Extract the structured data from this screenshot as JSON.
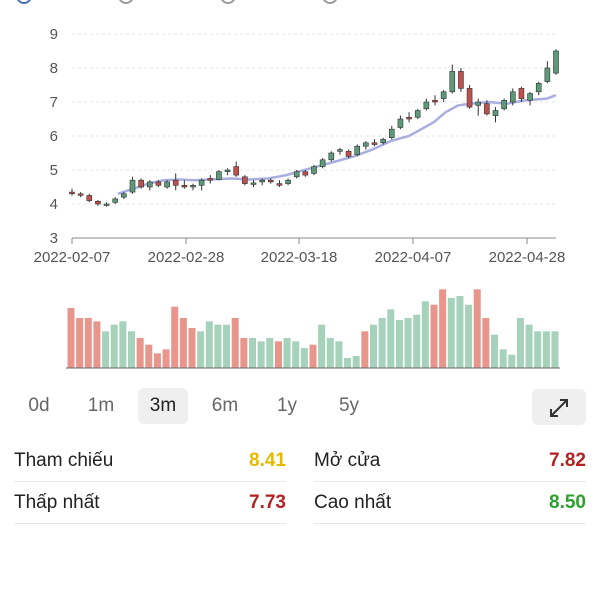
{
  "chart_data": {
    "type": "candlestick",
    "xlabels": [
      "2022-02-07",
      "2022-02-28",
      "2022-03-18",
      "2022-04-07",
      "2022-04-28"
    ],
    "ylim": [
      3,
      9
    ],
    "yticks": [
      "3",
      "4",
      "5",
      "6",
      "7",
      "8",
      "9"
    ],
    "grid": true,
    "colors": {
      "up": "#5d9a7a",
      "down": "#c0504d",
      "ma": "#a9aee0",
      "vol_up": "#a6d1bb",
      "vol_down": "#e8958c"
    },
    "candles": [
      [
        4.35,
        4.45,
        4.25,
        4.3,
        "d"
      ],
      [
        4.3,
        4.35,
        4.2,
        4.28,
        "d"
      ],
      [
        4.25,
        4.3,
        4.05,
        4.1,
        "d"
      ],
      [
        4.08,
        4.12,
        3.95,
        4.0,
        "d"
      ],
      [
        3.98,
        4.05,
        3.92,
        4.0,
        "u"
      ],
      [
        4.05,
        4.2,
        4.0,
        4.15,
        "u"
      ],
      [
        4.2,
        4.35,
        4.15,
        4.3,
        "u"
      ],
      [
        4.35,
        4.8,
        4.3,
        4.7,
        "u"
      ],
      [
        4.7,
        4.75,
        4.45,
        4.5,
        "d"
      ],
      [
        4.5,
        4.7,
        4.4,
        4.65,
        "u"
      ],
      [
        4.65,
        4.7,
        4.5,
        4.55,
        "d"
      ],
      [
        4.5,
        4.7,
        4.45,
        4.65,
        "u"
      ],
      [
        4.7,
        4.9,
        4.4,
        4.55,
        "d"
      ],
      [
        4.55,
        4.7,
        4.45,
        4.5,
        "d"
      ],
      [
        4.5,
        4.6,
        4.4,
        4.55,
        "u"
      ],
      [
        4.55,
        4.75,
        4.4,
        4.7,
        "u"
      ],
      [
        4.75,
        4.85,
        4.6,
        4.7,
        "d"
      ],
      [
        4.72,
        5.0,
        4.7,
        4.95,
        "u"
      ],
      [
        4.95,
        5.05,
        4.85,
        5.0,
        "u"
      ],
      [
        5.1,
        5.25,
        4.8,
        4.85,
        "d"
      ],
      [
        4.8,
        4.85,
        4.55,
        4.6,
        "d"
      ],
      [
        4.6,
        4.7,
        4.5,
        4.62,
        "u"
      ],
      [
        4.65,
        4.75,
        4.55,
        4.7,
        "u"
      ],
      [
        4.7,
        4.75,
        4.6,
        4.65,
        "d"
      ],
      [
        4.6,
        4.7,
        4.5,
        4.55,
        "d"
      ],
      [
        4.6,
        4.75,
        4.55,
        4.7,
        "u"
      ],
      [
        4.8,
        5.0,
        4.75,
        4.95,
        "u"
      ],
      [
        4.95,
        5.0,
        4.8,
        4.85,
        "d"
      ],
      [
        4.9,
        5.15,
        4.85,
        5.1,
        "u"
      ],
      [
        5.1,
        5.35,
        5.05,
        5.3,
        "u"
      ],
      [
        5.3,
        5.55,
        5.25,
        5.5,
        "u"
      ],
      [
        5.55,
        5.65,
        5.45,
        5.6,
        "u"
      ],
      [
        5.55,
        5.6,
        5.35,
        5.4,
        "d"
      ],
      [
        5.45,
        5.75,
        5.4,
        5.7,
        "u"
      ],
      [
        5.7,
        5.85,
        5.6,
        5.8,
        "u"
      ],
      [
        5.8,
        5.9,
        5.7,
        5.75,
        "d"
      ],
      [
        5.8,
        5.95,
        5.75,
        5.9,
        "u"
      ],
      [
        5.95,
        6.3,
        5.9,
        6.2,
        "u"
      ],
      [
        6.25,
        6.6,
        6.2,
        6.5,
        "u"
      ],
      [
        6.5,
        6.7,
        6.4,
        6.55,
        "d"
      ],
      [
        6.55,
        6.8,
        6.5,
        6.75,
        "u"
      ],
      [
        6.8,
        7.1,
        6.75,
        7.0,
        "u"
      ],
      [
        7.0,
        7.2,
        6.9,
        7.05,
        "d"
      ],
      [
        7.1,
        7.35,
        7.0,
        7.3,
        "u"
      ],
      [
        7.3,
        8.1,
        7.25,
        7.9,
        "u"
      ],
      [
        7.9,
        8.0,
        7.3,
        7.4,
        "d"
      ],
      [
        7.4,
        7.5,
        6.8,
        6.85,
        "d"
      ],
      [
        6.9,
        7.1,
        6.6,
        7.0,
        "u"
      ],
      [
        6.95,
        7.05,
        6.6,
        6.65,
        "d"
      ],
      [
        6.6,
        6.85,
        6.4,
        6.75,
        "u"
      ],
      [
        6.8,
        7.1,
        6.75,
        7.05,
        "u"
      ],
      [
        7.0,
        7.4,
        6.9,
        7.3,
        "u"
      ],
      [
        7.4,
        7.45,
        7.0,
        7.1,
        "d"
      ],
      [
        7.05,
        7.3,
        6.9,
        7.25,
        "u"
      ],
      [
        7.3,
        7.6,
        7.2,
        7.55,
        "u"
      ],
      [
        7.6,
        8.2,
        7.55,
        8.0,
        "u"
      ],
      [
        7.85,
        8.55,
        7.8,
        8.5,
        "u"
      ]
    ],
    "ma": [
      [
        15,
        4.3
      ],
      [
        20,
        4.45
      ],
      [
        25,
        4.6
      ],
      [
        30,
        4.7
      ],
      [
        35,
        4.72
      ],
      [
        40,
        4.7
      ],
      [
        45,
        4.72
      ],
      [
        52,
        4.75
      ],
      [
        58,
        4.72
      ],
      [
        64,
        4.75
      ],
      [
        70,
        4.85
      ],
      [
        75,
        4.98
      ],
      [
        80,
        5.1
      ],
      [
        86,
        5.25
      ],
      [
        92,
        5.4
      ],
      [
        98,
        5.6
      ],
      [
        104,
        5.85
      ],
      [
        110,
        6.0
      ],
      [
        114,
        6.2
      ],
      [
        118,
        6.4
      ],
      [
        122,
        6.7
      ],
      [
        126,
        6.9
      ],
      [
        130,
        6.95
      ],
      [
        136,
        7.0
      ],
      [
        142,
        6.95
      ],
      [
        148,
        7.05
      ],
      [
        155,
        7.1
      ],
      [
        158,
        7.2
      ]
    ],
    "volume": [
      [
        90,
        "d"
      ],
      [
        75,
        "d"
      ],
      [
        75,
        "d"
      ],
      [
        70,
        "d"
      ],
      [
        55,
        "u"
      ],
      [
        65,
        "u"
      ],
      [
        70,
        "u"
      ],
      [
        55,
        "u"
      ],
      [
        45,
        "d"
      ],
      [
        35,
        "d"
      ],
      [
        22,
        "d"
      ],
      [
        28,
        "d"
      ],
      [
        92,
        "d"
      ],
      [
        75,
        "d"
      ],
      [
        60,
        "d"
      ],
      [
        55,
        "u"
      ],
      [
        70,
        "u"
      ],
      [
        65,
        "u"
      ],
      [
        65,
        "u"
      ],
      [
        75,
        "d"
      ],
      [
        45,
        "d"
      ],
      [
        45,
        "u"
      ],
      [
        40,
        "u"
      ],
      [
        45,
        "u"
      ],
      [
        40,
        "d"
      ],
      [
        45,
        "u"
      ],
      [
        40,
        "u"
      ],
      [
        30,
        "u"
      ],
      [
        35,
        "d"
      ],
      [
        65,
        "u"
      ],
      [
        45,
        "u"
      ],
      [
        40,
        "u"
      ],
      [
        15,
        "u"
      ],
      [
        18,
        "u"
      ],
      [
        55,
        "d"
      ],
      [
        65,
        "u"
      ],
      [
        75,
        "u"
      ],
      [
        88,
        "u"
      ],
      [
        72,
        "u"
      ],
      [
        75,
        "u"
      ],
      [
        80,
        "u"
      ],
      [
        100,
        "u"
      ],
      [
        95,
        "d"
      ],
      [
        118,
        "d"
      ],
      [
        105,
        "u"
      ],
      [
        108,
        "u"
      ],
      [
        95,
        "u"
      ],
      [
        118,
        "d"
      ],
      [
        75,
        "d"
      ],
      [
        50,
        "u"
      ],
      [
        28,
        "u"
      ],
      [
        20,
        "u"
      ],
      [
        75,
        "u"
      ],
      [
        65,
        "u"
      ],
      [
        55,
        "u"
      ],
      [
        55,
        "u"
      ],
      [
        55,
        "u"
      ]
    ]
  },
  "periods": [
    "0d",
    "1m",
    "3m",
    "6m",
    "1y",
    "5y"
  ],
  "active_period": "3m",
  "expand_icon": "expand-icon",
  "stats": {
    "reference_label": "Tham chiếu",
    "reference_value": "8.41",
    "reference_color": "#e6b800",
    "open_label": "Mở cửa",
    "open_value": "7.82",
    "open_color": "#b22222",
    "low_label": "Thấp nhất",
    "low_value": "7.73",
    "low_color": "#b22222",
    "high_label": "Cao nhất",
    "high_value": "8.50",
    "high_color": "#2ca02c"
  }
}
